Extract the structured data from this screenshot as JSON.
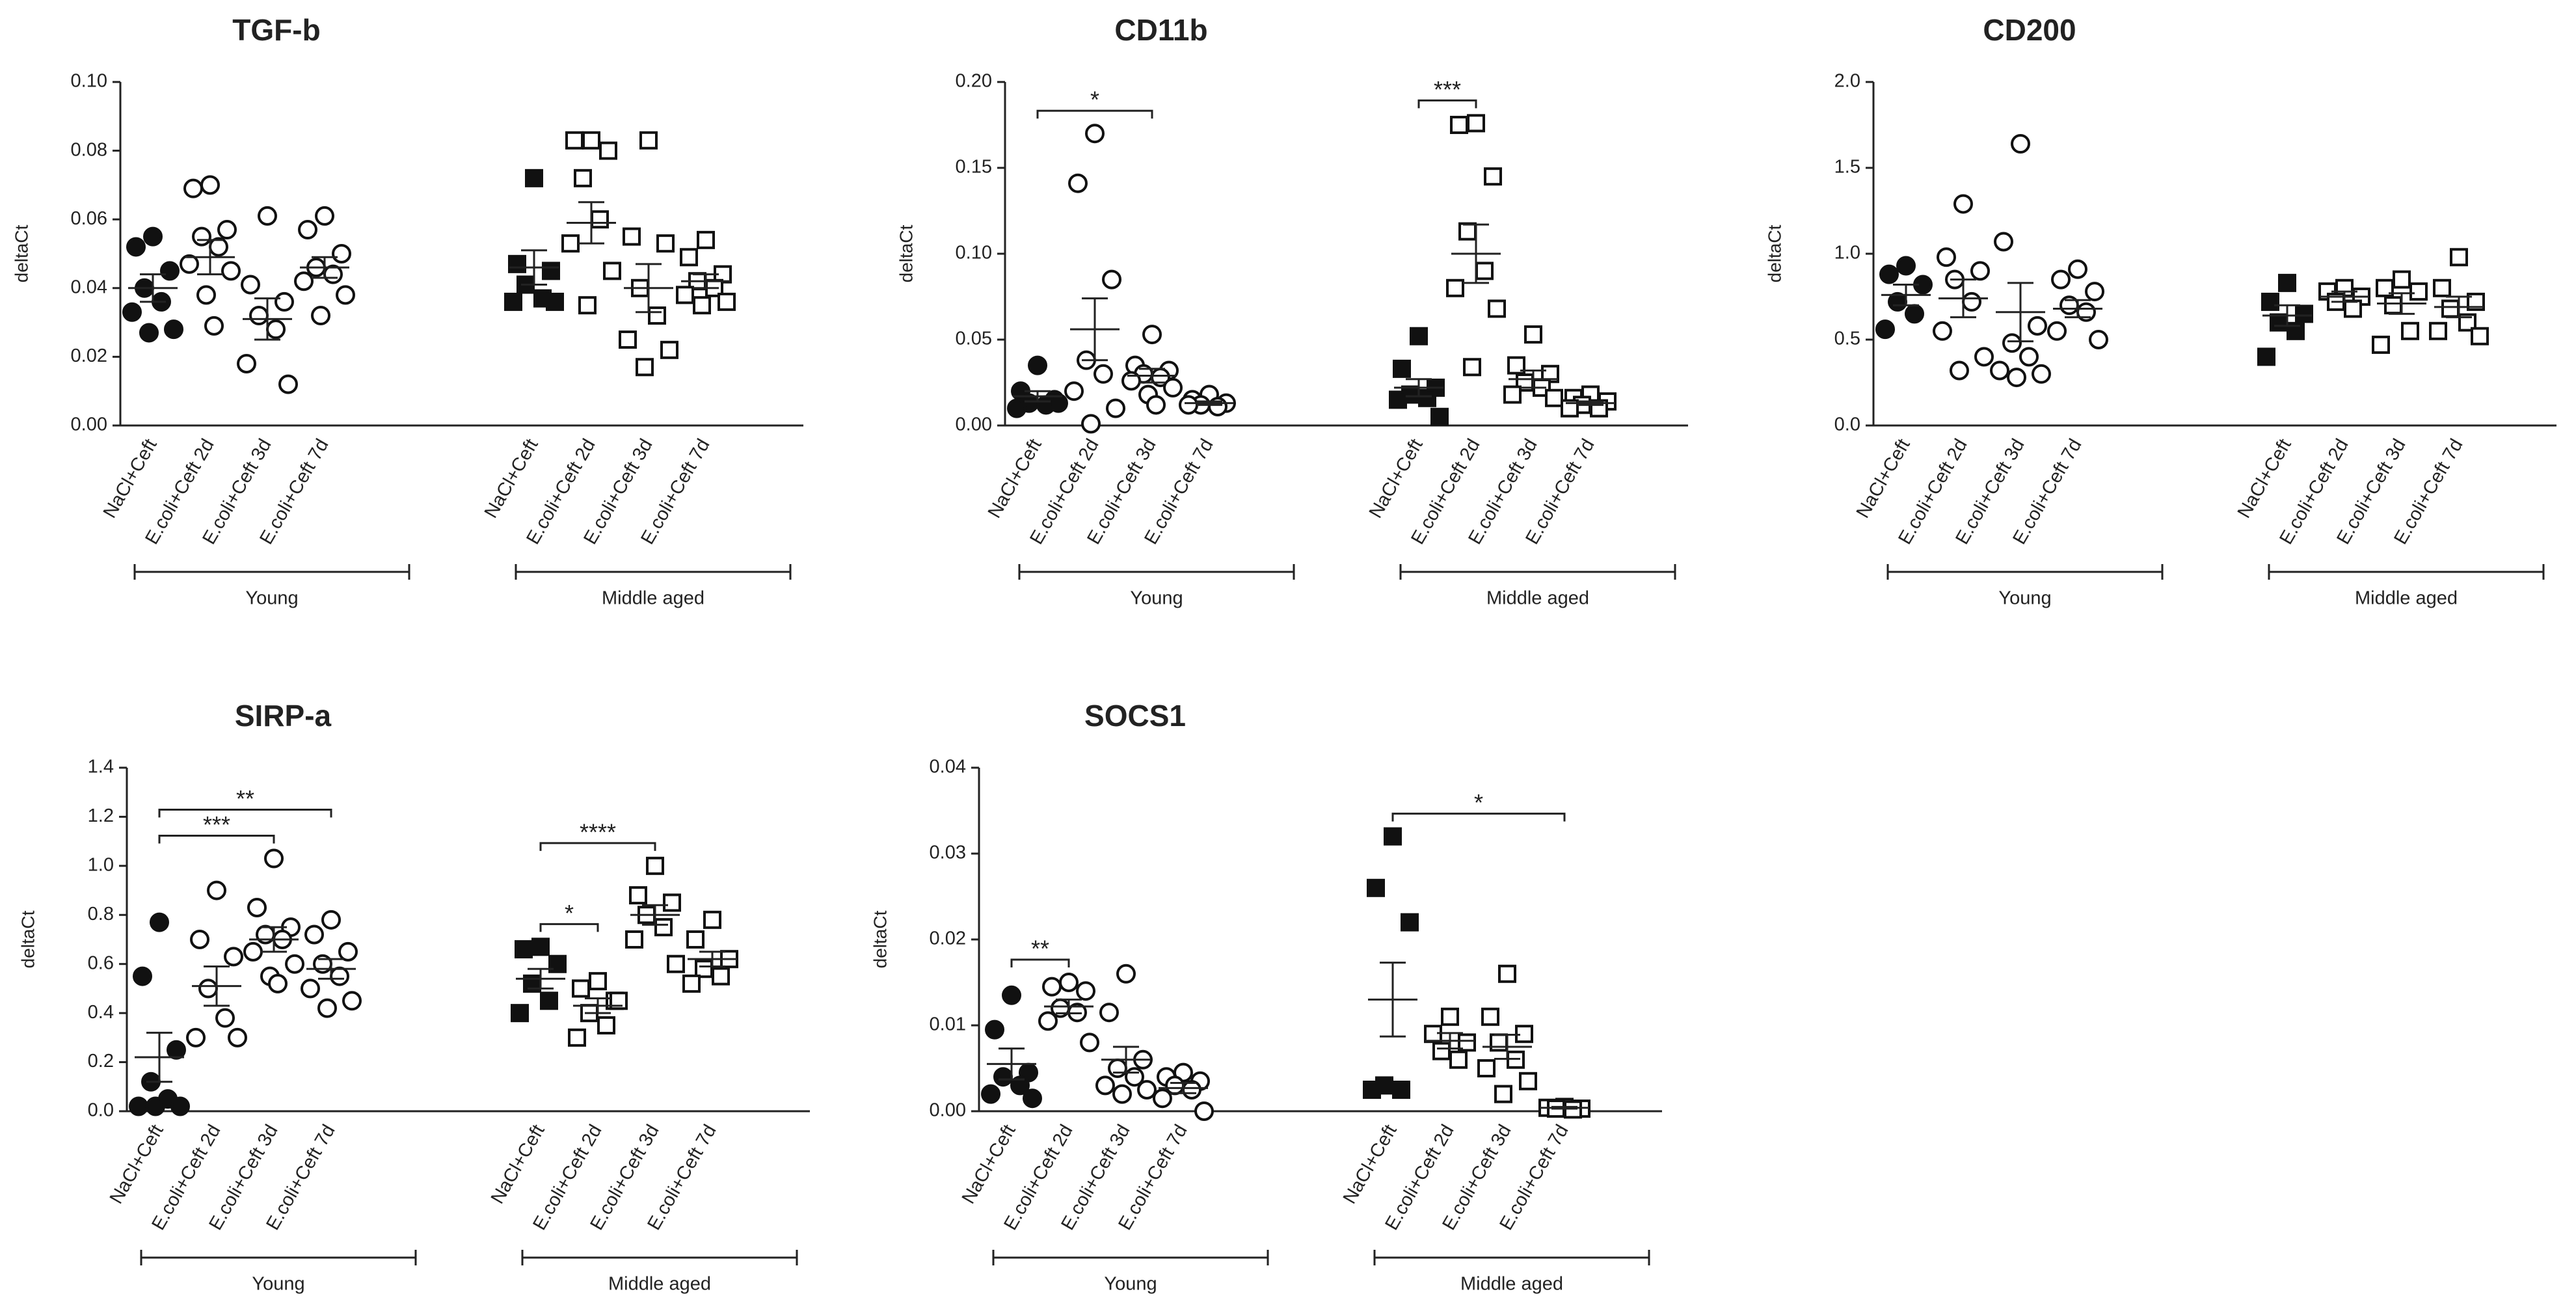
{
  "chart_data": [
    {
      "type": "dot",
      "title": "TGF-b",
      "y_label": "deltaCt",
      "ylim": [
        0,
        0.1
      ],
      "yticks": [
        {
          "value": 0,
          "label": "0.00"
        },
        0.02,
        0.04,
        0.06,
        0.08,
        {
          "value": 0.1,
          "label": "0.10"
        }
      ],
      "groups": [
        {
          "name": "Young",
          "marker": "circle",
          "filled": [
            true,
            false,
            false,
            false
          ],
          "categories": [
            "NaCl+Ceft",
            "E.coli+Ceft 2d",
            "E.coli+Ceft 3d",
            "E.coli+Ceft 7d"
          ],
          "points": [
            [
              0.055,
              0.052,
              0.045,
              0.04,
              0.036,
              0.033,
              0.028,
              0.027
            ],
            [
              0.07,
              0.069,
              0.057,
              0.055,
              0.052,
              0.047,
              0.045,
              0.038,
              0.029
            ],
            [
              0.061,
              0.041,
              0.036,
              0.032,
              0.028,
              0.018,
              0.012
            ],
            [
              0.061,
              0.057,
              0.05,
              0.046,
              0.044,
              0.042,
              0.038,
              0.032
            ]
          ],
          "means": [
            0.04,
            0.049,
            0.031,
            0.046
          ],
          "sems": [
            0.004,
            0.005,
            0.006,
            0.003
          ],
          "brackets": []
        },
        {
          "name": "Middle aged",
          "marker": "square",
          "filled": [
            true,
            false,
            false,
            false
          ],
          "categories": [
            "NaCl+Ceft",
            "E.coli+Ceft 2d",
            "E.coli+Ceft 3d",
            "E.coli+Ceft 7d"
          ],
          "points": [
            [
              0.072,
              0.047,
              0.045,
              0.041,
              0.037,
              0.036,
              0.036
            ],
            [
              0.083,
              0.083,
              0.08,
              0.072,
              0.06,
              0.053,
              0.045,
              0.035
            ],
            [
              0.083,
              0.055,
              0.053,
              0.04,
              0.032,
              0.025,
              0.022,
              0.017
            ],
            [
              0.054,
              0.049,
              0.044,
              0.042,
              0.04,
              0.038,
              0.036,
              0.035
            ]
          ],
          "means": [
            0.046,
            0.059,
            0.04,
            0.042
          ],
          "sems": [
            0.005,
            0.006,
            0.007,
            0.002
          ],
          "brackets": []
        }
      ]
    },
    {
      "type": "dot",
      "title": "CD11b",
      "y_label": "deltaCt",
      "ylim": [
        0,
        0.2
      ],
      "yticks": [
        {
          "value": 0,
          "label": "0.00"
        },
        0.05,
        {
          "value": 0.1,
          "label": "0.10"
        },
        0.15,
        {
          "value": 0.2,
          "label": "0.20"
        }
      ],
      "groups": [
        {
          "name": "Young",
          "marker": "circle",
          "filled": [
            true,
            false,
            false,
            false
          ],
          "categories": [
            "NaCl+Ceft",
            "E.coli+Ceft 2d",
            "E.coli+Ceft 3d",
            "E.coli+Ceft 7d"
          ],
          "points": [
            [
              0.035,
              0.02,
              0.015,
              0.013,
              0.012,
              0.01,
              0.013
            ],
            [
              0.17,
              0.141,
              0.085,
              0.038,
              0.03,
              0.02,
              0.01,
              0.001
            ],
            [
              0.053,
              0.035,
              0.032,
              0.03,
              0.028,
              0.026,
              0.022,
              0.018,
              0.012
            ],
            [
              0.018,
              0.015,
              0.013,
              0.012,
              0.011,
              0.012
            ]
          ],
          "means": [
            0.017,
            0.056,
            0.029,
            0.013
          ],
          "sems": [
            0.003,
            0.018,
            0.004,
            0.001
          ],
          "brackets": [
            {
              "from": 0,
              "to": 2,
              "label": "*"
            }
          ]
        },
        {
          "name": "Middle aged",
          "marker": "square",
          "filled": [
            true,
            false,
            false,
            false
          ],
          "categories": [
            "NaCl+Ceft",
            "E.coli+Ceft 2d",
            "E.coli+Ceft 3d",
            "E.coli+Ceft 7d"
          ],
          "points": [
            [
              0.052,
              0.033,
              0.022,
              0.018,
              0.016,
              0.015,
              0.005
            ],
            [
              0.176,
              0.175,
              0.145,
              0.113,
              0.09,
              0.08,
              0.068,
              0.034
            ],
            [
              0.053,
              0.035,
              0.03,
              0.025,
              0.022,
              0.018,
              0.016
            ],
            [
              0.018,
              0.016,
              0.014,
              0.012,
              0.01,
              0.01
            ]
          ],
          "means": [
            0.022,
            0.1,
            0.027,
            0.013
          ],
          "sems": [
            0.005,
            0.017,
            0.005,
            0.001
          ],
          "brackets": [
            {
              "from": 0,
              "to": 1,
              "label": "***"
            }
          ]
        }
      ]
    },
    {
      "type": "dot",
      "title": "CD200",
      "y_label": "deltaCt",
      "ylim": [
        0,
        2
      ],
      "yticks": [
        {
          "value": 0,
          "label": "0.0"
        },
        0.5,
        {
          "value": 1,
          "label": "1.0"
        },
        1.5,
        {
          "value": 2,
          "label": "2.0"
        }
      ],
      "groups": [
        {
          "name": "Young",
          "marker": "circle",
          "filled": [
            true,
            false,
            false,
            false
          ],
          "categories": [
            "NaCl+Ceft",
            "E.coli+Ceft 2d",
            "E.coli+Ceft 3d",
            "E.coli+Ceft 7d"
          ],
          "points": [
            [
              0.93,
              0.88,
              0.82,
              0.72,
              0.65,
              0.56
            ],
            [
              1.29,
              0.98,
              0.9,
              0.85,
              0.72,
              0.55,
              0.4,
              0.32
            ],
            [
              1.64,
              1.07,
              0.58,
              0.48,
              0.4,
              0.32,
              0.3,
              0.28
            ],
            [
              0.91,
              0.85,
              0.78,
              0.7,
              0.66,
              0.55,
              0.5
            ]
          ],
          "means": [
            0.76,
            0.74,
            0.66,
            0.68
          ],
          "sems": [
            0.06,
            0.11,
            0.17,
            0.05
          ],
          "brackets": []
        },
        {
          "name": "Middle aged",
          "marker": "square",
          "filled": [
            true,
            false,
            false,
            false
          ],
          "categories": [
            "NaCl+Ceft",
            "E.coli+Ceft 2d",
            "E.coli+Ceft 3d",
            "E.coli+Ceft 7d"
          ],
          "points": [
            [
              0.83,
              0.72,
              0.65,
              0.6,
              0.55,
              0.4
            ],
            [
              0.8,
              0.78,
              0.75,
              0.72,
              0.68
            ],
            [
              0.85,
              0.8,
              0.78,
              0.7,
              0.55,
              0.47
            ],
            [
              0.98,
              0.8,
              0.72,
              0.68,
              0.6,
              0.55,
              0.52
            ]
          ],
          "means": [
            0.64,
            0.75,
            0.71,
            0.69
          ],
          "sems": [
            0.06,
            0.03,
            0.06,
            0.06
          ],
          "brackets": []
        }
      ]
    },
    {
      "type": "dot",
      "title": "SIRP-a",
      "y_label": "deltaCt",
      "ylim": [
        0,
        1.4
      ],
      "yticks": [
        {
          "value": 0,
          "label": "0.0"
        },
        0.2,
        0.4,
        0.6,
        0.8,
        {
          "value": 1,
          "label": "1.0"
        },
        1.2,
        1.4
      ],
      "groups": [
        {
          "name": "Young",
          "marker": "circle",
          "filled": [
            true,
            false,
            false,
            false
          ],
          "categories": [
            "NaCl+Ceft",
            "E.coli+Ceft 2d",
            "E.coli+Ceft 3d",
            "E.coli+Ceft 7d"
          ],
          "points": [
            [
              0.77,
              0.55,
              0.25,
              0.12,
              0.05,
              0.02,
              0.02,
              0.02
            ],
            [
              0.9,
              0.7,
              0.63,
              0.5,
              0.38,
              0.3,
              0.3
            ],
            [
              1.03,
              0.83,
              0.75,
              0.72,
              0.7,
              0.65,
              0.6,
              0.55,
              0.52
            ],
            [
              0.78,
              0.72,
              0.65,
              0.6,
              0.55,
              0.5,
              0.45,
              0.42
            ]
          ],
          "means": [
            0.22,
            0.51,
            0.7,
            0.58
          ],
          "sems": [
            0.1,
            0.08,
            0.05,
            0.04
          ],
          "brackets": [
            {
              "from": 0,
              "to": 3,
              "label": "**"
            },
            {
              "from": 0,
              "to": 2,
              "label": "***"
            }
          ]
        },
        {
          "name": "Middle aged",
          "marker": "square",
          "filled": [
            true,
            false,
            false,
            false
          ],
          "categories": [
            "NaCl+Ceft",
            "E.coli+Ceft 2d",
            "E.coli+Ceft 3d",
            "E.coli+Ceft 7d"
          ],
          "points": [
            [
              0.67,
              0.66,
              0.6,
              0.52,
              0.45,
              0.4
            ],
            [
              0.53,
              0.5,
              0.45,
              0.4,
              0.35,
              0.3,
              0.45
            ],
            [
              1,
              0.88,
              0.85,
              0.8,
              0.75,
              0.7,
              0.6
            ],
            [
              0.78,
              0.7,
              0.62,
              0.58,
              0.55,
              0.52
            ]
          ],
          "means": [
            0.54,
            0.43,
            0.8,
            0.62
          ],
          "sems": [
            0.04,
            0.03,
            0.04,
            0.03
          ],
          "brackets": [
            {
              "from": 0,
              "to": 2,
              "label": "****"
            },
            {
              "from": 0,
              "to": 1,
              "label": "*"
            }
          ]
        }
      ]
    },
    {
      "type": "dot",
      "title": "SOCS1",
      "y_label": "deltaCt",
      "ylim": [
        0,
        0.04
      ],
      "yticks": [
        {
          "value": 0,
          "label": "0.00"
        },
        0.01,
        0.02,
        0.03,
        0.04
      ],
      "groups": [
        {
          "name": "Young",
          "marker": "circle",
          "filled": [
            true,
            false,
            false,
            false
          ],
          "categories": [
            "NaCl+Ceft",
            "E.coli+Ceft 2d",
            "E.coli+Ceft 3d",
            "E.coli+Ceft 7d"
          ],
          "points": [
            [
              0.0135,
              0.0095,
              0.0045,
              0.004,
              0.003,
              0.002,
              0.0015
            ],
            [
              0.015,
              0.0145,
              0.014,
              0.012,
              0.0115,
              0.0105,
              0.008
            ],
            [
              0.016,
              0.0115,
              0.006,
              0.005,
              0.004,
              0.003,
              0.0025,
              0.002
            ],
            [
              0.0045,
              0.004,
              0.0035,
              0.003,
              0.0025,
              0.0015,
              0
            ]
          ],
          "means": [
            0.0055,
            0.0122,
            0.006,
            0.0027
          ],
          "sems": [
            0.0018,
            0.0008,
            0.0015,
            0.0006
          ],
          "brackets": [
            {
              "from": 0,
              "to": 1,
              "label": "**"
            }
          ]
        },
        {
          "name": "Middle aged",
          "marker": "square",
          "filled": [
            true,
            false,
            false,
            false
          ],
          "categories": [
            "NaCl+Ceft",
            "E.coli+Ceft 2d",
            "E.coli+Ceft 3d",
            "E.coli+Ceft 7d"
          ],
          "points": [
            [
              0.032,
              0.026,
              0.022,
              0.003,
              0.0025,
              0.0025
            ],
            [
              0.011,
              0.009,
              0.008,
              0.007,
              0.006
            ],
            [
              0.016,
              0.011,
              0.009,
              0.008,
              0.006,
              0.005,
              0.0035,
              0.002
            ],
            [
              0.0005,
              0.0004,
              0.0003,
              0.0003,
              0.0002
            ]
          ],
          "means": [
            0.013,
            0.0082,
            0.0075,
            0.0004
          ],
          "sems": [
            0.0043,
            0.0009,
            0.0014,
            0.0001
          ],
          "brackets": [
            {
              "from": 0,
              "to": 3,
              "label": "*"
            }
          ]
        }
      ]
    }
  ]
}
